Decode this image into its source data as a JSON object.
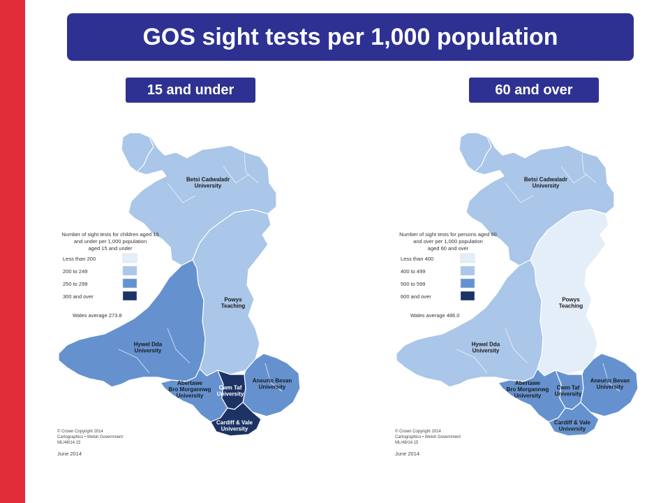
{
  "title": "GOS sight tests per 1,000 population",
  "colors": {
    "band1": "#e3eef9",
    "band2": "#aac6e8",
    "band3": "#6592cf",
    "band4": "#1c3363",
    "border": "#ffffff",
    "title_bg": "#2e3192",
    "accent_bar": "#e12d3a"
  },
  "maps": [
    {
      "badge": "15 and under",
      "legend_title": [
        "Number of sight tests for children aged 15",
        "and under per 1,000 population",
        "aged 15 and under"
      ],
      "legend": [
        "Less than 200",
        "200 to 249",
        "250 to 299",
        "300 and over"
      ],
      "average": "Wales average 273.8",
      "regions": {
        "betsi": {
          "name": [
            "Betsi Cadwaladr",
            "University"
          ],
          "band": 2
        },
        "powys": {
          "name": [
            "Powys",
            "Teaching"
          ],
          "band": 2
        },
        "hywel": {
          "name": [
            "Hywel Dda",
            "University"
          ],
          "band": 3
        },
        "abm": {
          "name": [
            "Abertawe",
            "Bro Morgannwg",
            "University"
          ],
          "band": 3
        },
        "cwm": {
          "name": [
            "Cwm Taf",
            "University"
          ],
          "band": 4
        },
        "aneurin": {
          "name": [
            "Aneurin Bevan",
            "University"
          ],
          "band": 3
        },
        "cardiff": {
          "name": [
            "Cardiff & Vale",
            "University"
          ],
          "band": 4
        }
      },
      "copyright": [
        "© Crown Copyright 2014",
        "Cartographics • Welsh Government",
        "ML/48/14.15"
      ],
      "date": "June 2014"
    },
    {
      "badge": "60 and over",
      "legend_title": [
        "Number of sight tests for persons aged 60",
        "and over per 1,000 population",
        "aged 60 and over"
      ],
      "legend": [
        "Less than 400",
        "400 to 499",
        "500 to 599",
        "600 and over"
      ],
      "average": "Wales average 486.0",
      "regions": {
        "betsi": {
          "name": [
            "Betsi Cadwaladr",
            "University"
          ],
          "band": 2
        },
        "powys": {
          "name": [
            "Powys",
            "Teaching"
          ],
          "band": 1
        },
        "hywel": {
          "name": [
            "Hywel Dda",
            "University"
          ],
          "band": 2
        },
        "abm": {
          "name": [
            "Abertawe",
            "Bro Morgannwg",
            "University"
          ],
          "band": 3
        },
        "cwm": {
          "name": [
            "Cwm Taf",
            "University"
          ],
          "band": 3
        },
        "aneurin": {
          "name": [
            "Aneurin Bevan",
            "University"
          ],
          "band": 3
        },
        "cardiff": {
          "name": [
            "Cardiff & Vale",
            "University"
          ],
          "band": 3
        }
      },
      "copyright": [
        "© Crown Copyright 2014",
        "Cartographics • Welsh Government",
        "ML/48/14.15"
      ],
      "date": "June 2014"
    }
  ]
}
